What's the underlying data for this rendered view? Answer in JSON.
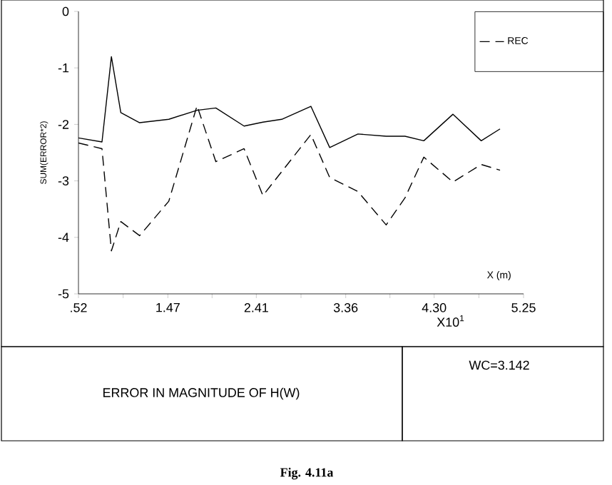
{
  "chart_data": {
    "type": "line",
    "title": "ERROR IN MAGNITUDE OF H(W)",
    "xlabel": "X (m)",
    "ylabel": "SUM(ERROR*2)",
    "annotations": [
      "X10$^{1}$",
      "WC=3.142",
      "Fig. 4.11a"
    ],
    "x": [
      0.52,
      0.77,
      0.87,
      0.97,
      1.17,
      1.48,
      1.78,
      1.98,
      2.28,
      2.48,
      2.68,
      2.99,
      3.19,
      3.49,
      3.79,
      3.99,
      4.19,
      4.5,
      4.8,
      5.0
    ],
    "series": [
      {
        "color": "#000000",
        "line_style": "solid",
        "values": [
          -2.24,
          -2.31,
          -0.8,
          -1.79,
          -1.97,
          -1.91,
          -1.75,
          -1.71,
          -2.03,
          -1.96,
          -1.91,
          -1.68,
          -2.41,
          -2.17,
          -2.21,
          -2.21,
          -2.29,
          -1.82,
          -2.29,
          -2.08
        ]
      },
      {
        "name": "REC",
        "color": "#000000",
        "line_style": "dashed",
        "x": [
          0.52,
          0.77,
          0.87,
          0.97,
          1.17,
          1.48,
          1.78,
          1.98,
          2.28,
          2.48,
          2.99,
          3.19,
          3.49,
          3.79,
          3.99,
          4.19,
          4.5,
          4.8,
          5.0
        ],
        "values": [
          -2.33,
          -2.43,
          -4.24,
          -3.72,
          -3.97,
          -3.36,
          -1.67,
          -2.66,
          -2.43,
          -3.26,
          -2.18,
          -2.94,
          -3.19,
          -3.78,
          -3.3,
          -2.58,
          -3.02,
          -2.71,
          -2.81
        ]
      }
    ],
    "legend": "top right",
    "xlim": [
      0.52,
      5.25
    ],
    "ylim": [
      -5,
      0
    ],
    "xticks": [
      {
        "value": 0.52,
        "label": ".52"
      },
      {
        "value": 0.995,
        "label": null
      },
      {
        "value": 1.47,
        "label": "1.47"
      },
      {
        "value": 1.94,
        "label": null
      },
      {
        "value": 2.41,
        "label": "2.41"
      },
      {
        "value": 2.885,
        "label": null
      },
      {
        "value": 3.36,
        "label": "3.36"
      },
      {
        "value": 3.83,
        "label": null
      },
      {
        "value": 4.3,
        "label": "4.30"
      },
      {
        "value": 4.775,
        "label": null
      },
      {
        "value": 5.25,
        "label": "5.25"
      }
    ],
    "yticks": [
      -5,
      -4,
      -3,
      -2,
      -1,
      0
    ]
  }
}
